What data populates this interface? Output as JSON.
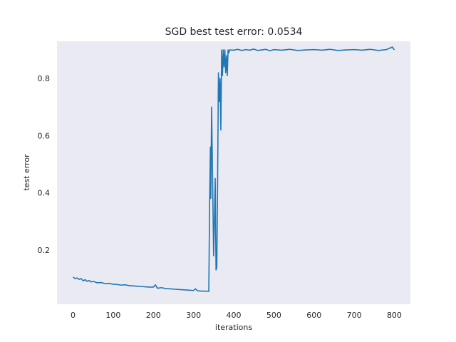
{
  "chart_data": {
    "type": "line",
    "title": "SGD best test error: 0.0534",
    "xlabel": "iterations",
    "ylabel": "test error",
    "xlim": [
      -40,
      840
    ],
    "ylim": [
      0.01,
      0.93
    ],
    "xticks": [
      0,
      100,
      200,
      300,
      400,
      500,
      600,
      700,
      800
    ],
    "yticks": [
      0.2,
      0.4,
      0.6,
      0.8
    ],
    "ytick_labels": [
      "0.2",
      "0.4",
      "0.6",
      "0.8"
    ],
    "grid": false,
    "background": "#eaeaf2",
    "series": [
      {
        "color": "#1f77b4",
        "x": [
          0,
          5,
          10,
          15,
          20,
          25,
          30,
          35,
          40,
          45,
          50,
          60,
          70,
          80,
          90,
          100,
          110,
          120,
          130,
          140,
          150,
          160,
          170,
          180,
          190,
          200,
          205,
          210,
          220,
          230,
          240,
          250,
          260,
          270,
          280,
          290,
          300,
          305,
          310,
          320,
          330,
          338,
          340,
          342,
          343,
          345,
          347,
          350,
          352,
          354,
          356,
          358,
          360,
          362,
          364,
          366,
          368,
          370,
          372,
          374,
          376,
          378,
          380,
          382,
          384,
          386,
          388,
          390,
          400,
          410,
          420,
          430,
          440,
          450,
          460,
          470,
          480,
          490,
          500,
          520,
          540,
          560,
          580,
          600,
          620,
          640,
          660,
          680,
          700,
          720,
          740,
          760,
          780,
          795,
          800
        ],
        "y": [
          0.105,
          0.1,
          0.102,
          0.097,
          0.1,
          0.092,
          0.096,
          0.09,
          0.093,
          0.088,
          0.09,
          0.085,
          0.086,
          0.082,
          0.083,
          0.08,
          0.079,
          0.077,
          0.078,
          0.075,
          0.074,
          0.073,
          0.072,
          0.071,
          0.07,
          0.07,
          0.078,
          0.066,
          0.068,
          0.065,
          0.064,
          0.063,
          0.062,
          0.061,
          0.06,
          0.059,
          0.058,
          0.064,
          0.057,
          0.056,
          0.056,
          0.055,
          0.36,
          0.56,
          0.38,
          0.7,
          0.5,
          0.18,
          0.3,
          0.45,
          0.13,
          0.14,
          0.45,
          0.82,
          0.72,
          0.8,
          0.62,
          0.9,
          0.81,
          0.9,
          0.84,
          0.9,
          0.82,
          0.88,
          0.81,
          0.9,
          0.89,
          0.9,
          0.899,
          0.902,
          0.898,
          0.901,
          0.899,
          0.903,
          0.898,
          0.9,
          0.902,
          0.897,
          0.901,
          0.899,
          0.902,
          0.898,
          0.9,
          0.901,
          0.899,
          0.902,
          0.898,
          0.9,
          0.901,
          0.899,
          0.902,
          0.898,
          0.901,
          0.91,
          0.9
        ]
      }
    ]
  }
}
